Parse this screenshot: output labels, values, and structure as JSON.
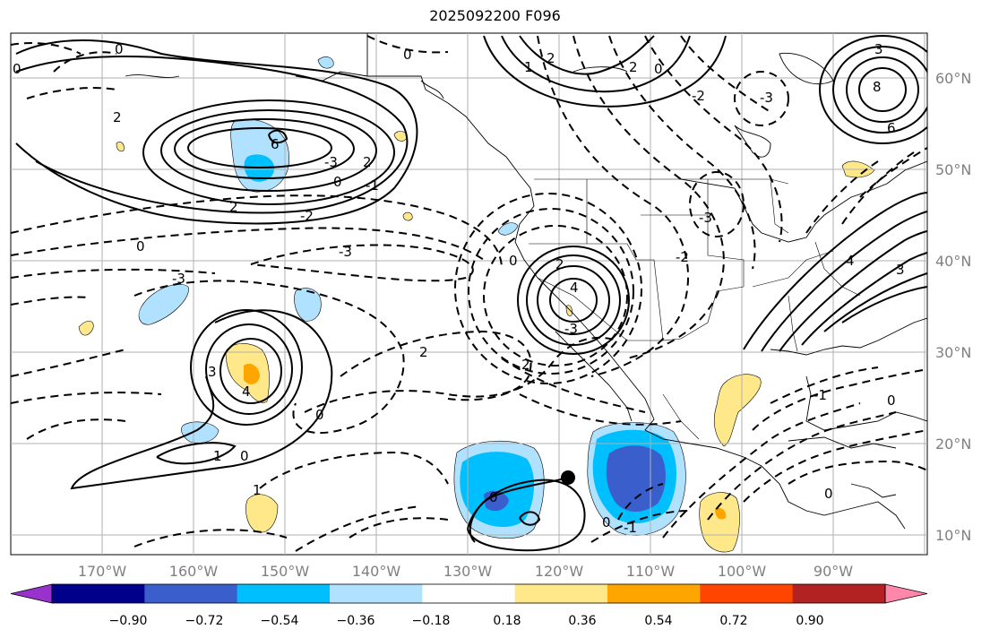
{
  "title": "2025092200 F096",
  "map": {
    "lon_labels": [
      "170°W",
      "160°W",
      "150°W",
      "140°W",
      "130°W",
      "120°W",
      "110°W",
      "100°W",
      "90°W"
    ],
    "lat_labels": [
      "60°N",
      "50°N",
      "40°N",
      "30°N",
      "20°N",
      "10°N"
    ],
    "contour_labels": [
      "0",
      "1",
      "2",
      "3",
      "4",
      "6",
      "8",
      "-1",
      "-2",
      "-3"
    ],
    "storm_marker": "storm-position-dot"
  },
  "colorbar": {
    "ticks": [
      "−0.90",
      "−0.72",
      "−0.54",
      "−0.36",
      "−0.18",
      "0.18",
      "0.36",
      "0.54",
      "0.72",
      "0.90"
    ],
    "colors": [
      "#9932cc",
      "#00008b",
      "#3a5fcd",
      "#00bfff",
      "#b0e2ff",
      "#ffffff",
      "#ffe88a",
      "#ffa500",
      "#ff4500",
      "#b22222",
      "#ff88aa"
    ]
  }
}
